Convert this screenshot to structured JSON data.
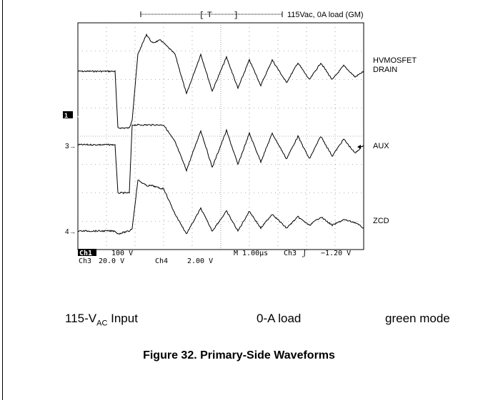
{
  "header_note": "115Vac, 0A load (GM)",
  "trigger_label": "T",
  "channels": [
    {
      "label": "HVMOSFET",
      "label2": "DRAIN",
      "marker": "1"
    },
    {
      "label": "AUX",
      "label2": "",
      "marker": "3"
    },
    {
      "label": "ZCD",
      "label2": "",
      "marker": "4"
    }
  ],
  "scope_readout": {
    "ch1": "Ch1",
    "ch1_scale": "100 V",
    "ch3": "Ch3",
    "ch3_scale": "20.0 V",
    "ch4": "Ch4",
    "ch4_scale": "2.00 V",
    "timebase": "M 1.00µs",
    "trig_src": "Ch3",
    "trig_slope": "ʃ",
    "trig_level": "−1.20 V"
  },
  "caption": {
    "input_main": "115-V",
    "input_sub": "AC",
    "input_tail": " Input",
    "load": "0-A load",
    "mode": "green mode",
    "figure_title": "Figure 32. Primary-Side Waveforms"
  },
  "chart_data": {
    "type": "line",
    "title": "115Vac, 0A load (GM)",
    "x_unit": "µs",
    "x_per_div": 1.0,
    "x_divisions": 10,
    "x": [
      0.0,
      1.3,
      1.4,
      1.8,
      1.9,
      2.1,
      2.4,
      2.6,
      2.9,
      3.0,
      3.4,
      3.8,
      4.3,
      4.7,
      5.2,
      5.6,
      6.0,
      6.4,
      6.8,
      7.3,
      7.7,
      8.1,
      8.5,
      8.9,
      9.3,
      9.7,
      10.0
    ],
    "series": [
      {
        "name": "HVMOSFET DRAIN",
        "unit": "V",
        "per_div": 100,
        "values": [
          0,
          0,
          -2.0,
          -2.0,
          -1.7,
          0.6,
          1.3,
          1.0,
          1.1,
          1.0,
          0.6,
          -0.8,
          0.6,
          -0.7,
          0.5,
          -0.6,
          0.4,
          -0.5,
          0.4,
          -0.4,
          0.3,
          -0.3,
          0.3,
          -0.3,
          0.2,
          -0.2,
          0
        ]
      },
      {
        "name": "AUX",
        "unit": "V",
        "per_div": 20,
        "values": [
          0,
          0,
          -1.7,
          -1.7,
          0.7,
          0.7,
          0.7,
          0.7,
          0.7,
          0.7,
          0.1,
          -0.9,
          0.5,
          -0.8,
          0.5,
          -0.7,
          0.4,
          -0.6,
          0.4,
          -0.5,
          0.3,
          -0.5,
          0.3,
          -0.4,
          0.2,
          -0.3,
          0
        ]
      },
      {
        "name": "ZCD",
        "unit": "V",
        "per_div": 2,
        "values": [
          0,
          0,
          -0.1,
          0.0,
          0.1,
          1.8,
          1.6,
          1.6,
          1.5,
          1.5,
          0.6,
          -0.1,
          0.8,
          0.0,
          0.7,
          0.0,
          0.7,
          0.1,
          0.6,
          0.1,
          0.5,
          0.2,
          0.5,
          0.2,
          0.4,
          0.3,
          0.1
        ]
      }
    ],
    "grid": true
  }
}
